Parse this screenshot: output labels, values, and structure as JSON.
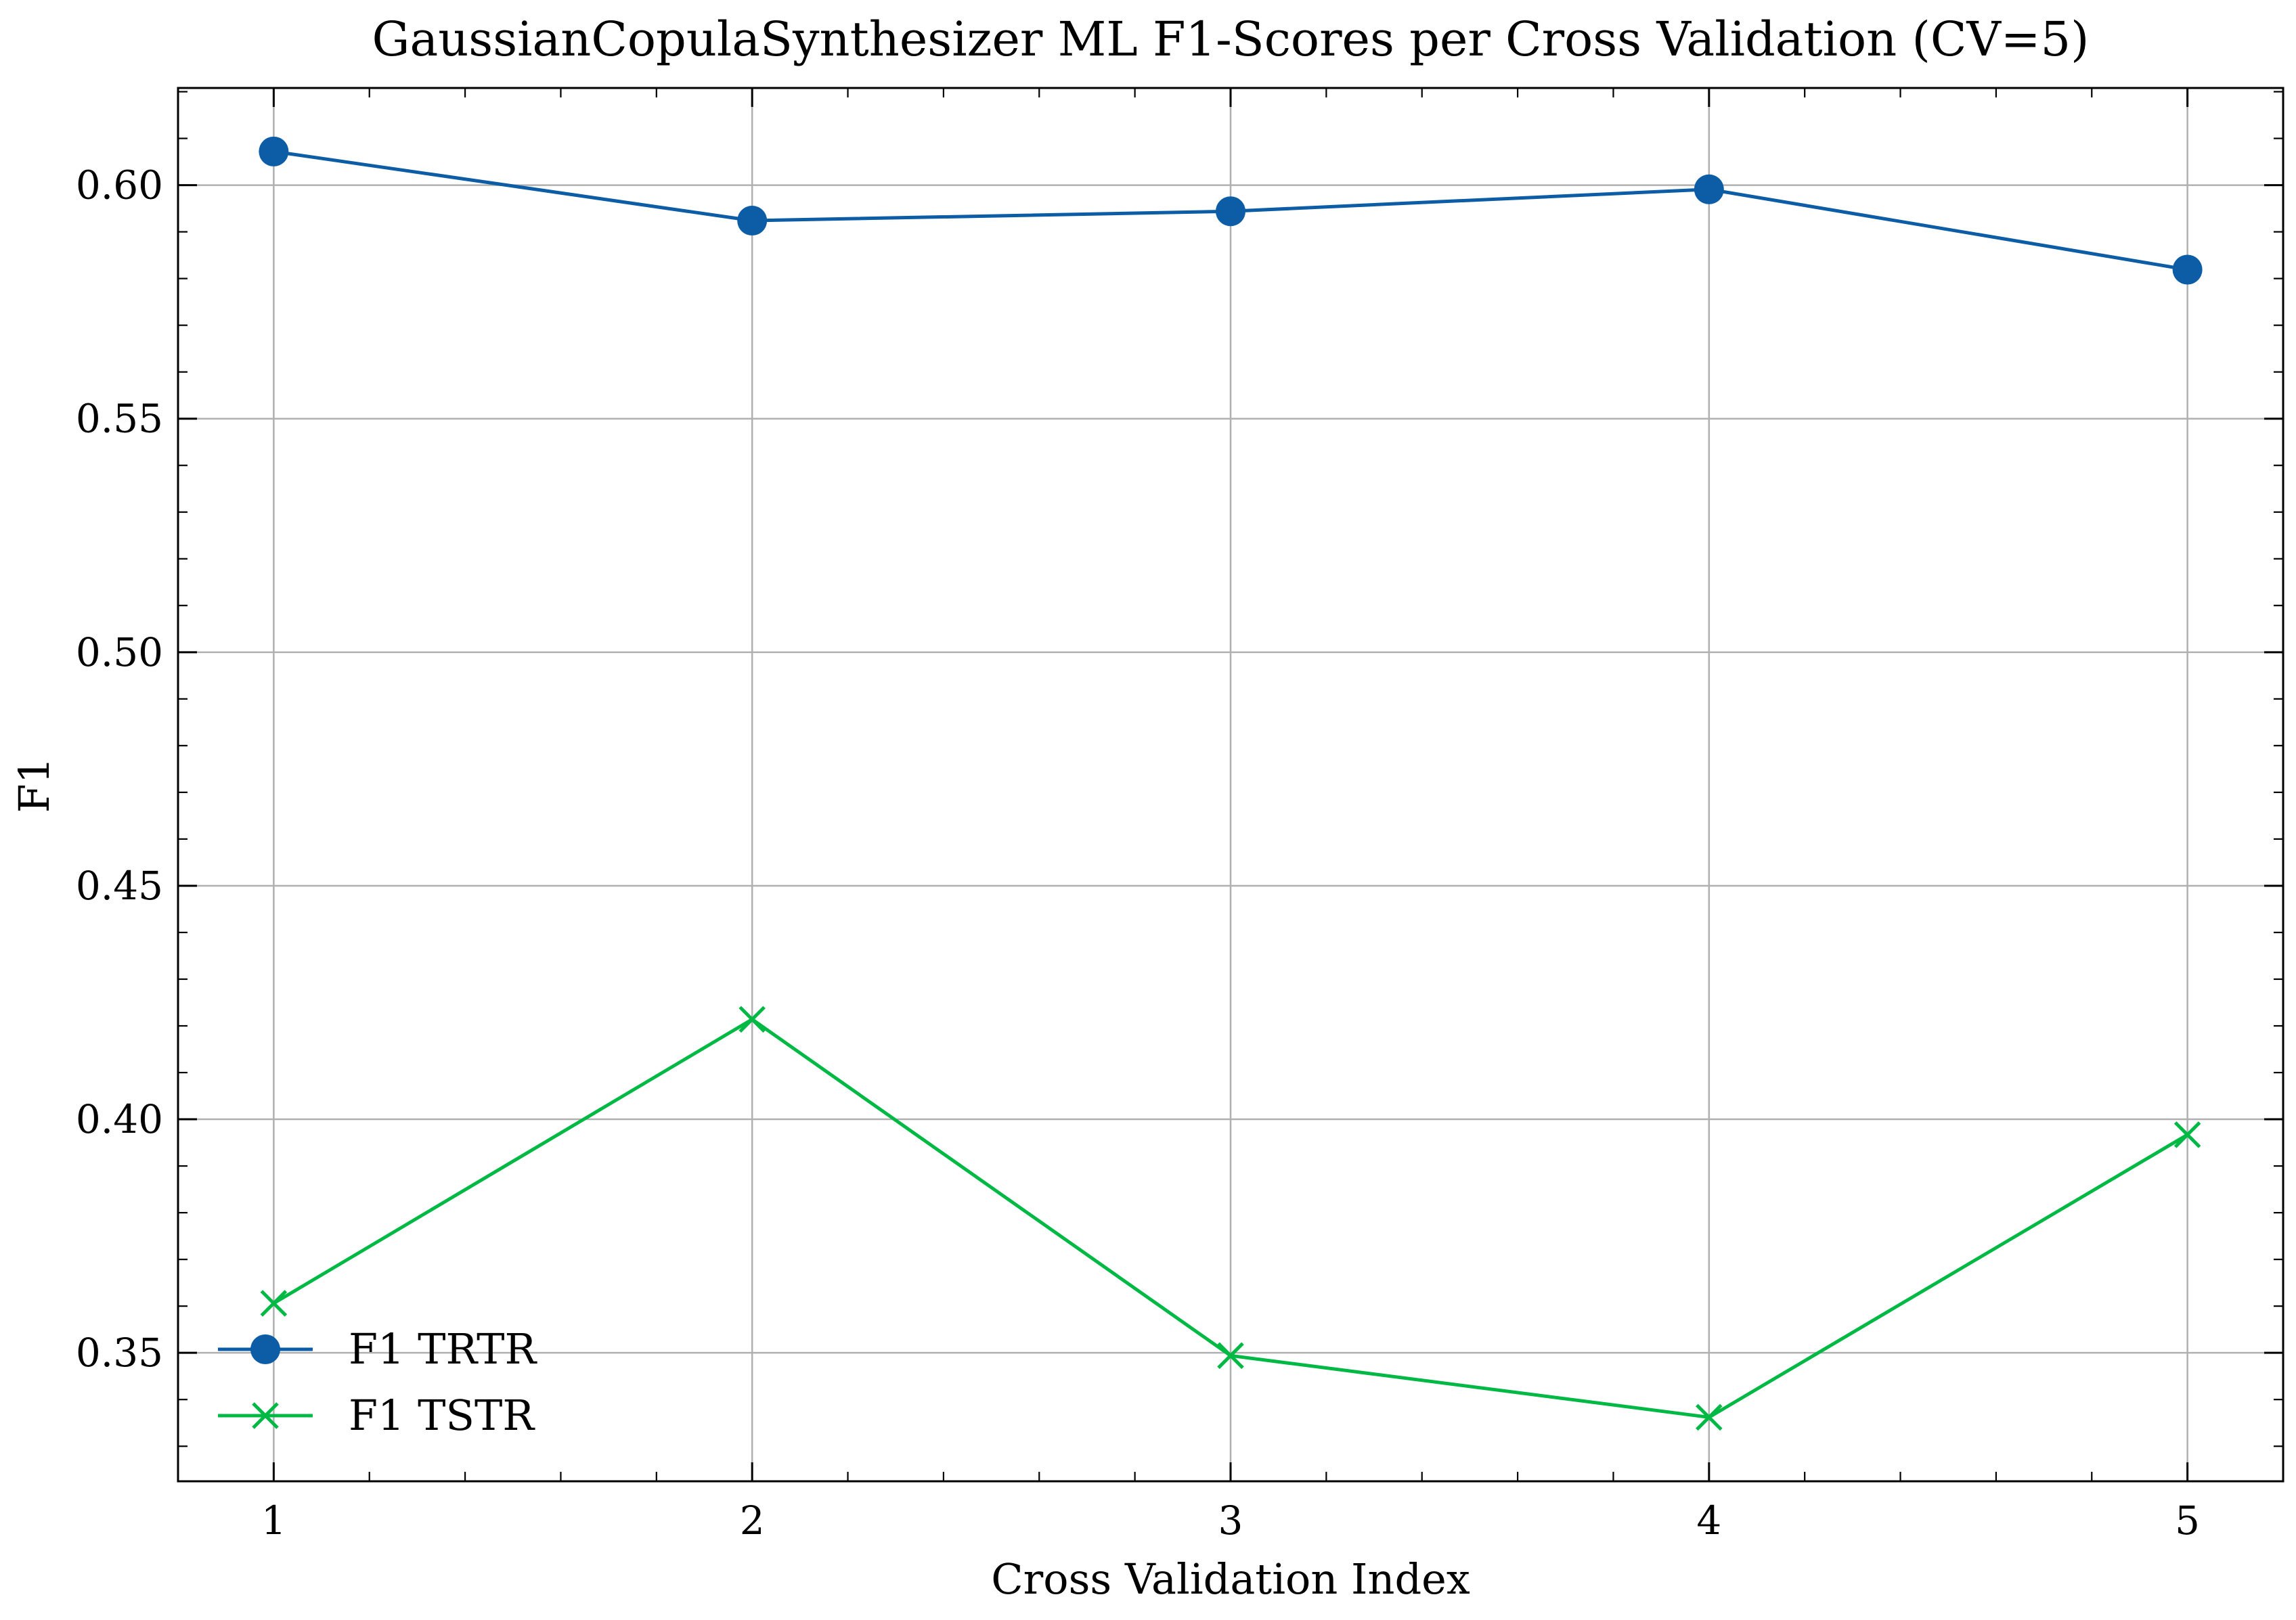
{
  "chart_data": {
    "type": "line",
    "title": "GaussianCopulaSynthesizer ML F1-Scores per Cross Validation (CV=5)",
    "xlabel": "Cross Validation Index",
    "ylabel": "F1",
    "x": [
      1,
      2,
      3,
      4,
      5
    ],
    "xlim": [
      0.8,
      5.2
    ],
    "ylim": [
      0.3225,
      0.6208
    ],
    "x_ticks": [
      "1",
      "2",
      "3",
      "4",
      "5"
    ],
    "y_ticks": [
      "0.35",
      "0.40",
      "0.45",
      "0.50",
      "0.55",
      "0.60"
    ],
    "grid": true,
    "legend_position": "lower-left",
    "series": [
      {
        "name": "F1 TRTR",
        "values": [
          0.6072,
          0.5924,
          0.5944,
          0.5991,
          0.5819
        ],
        "color": "#0C5DA5",
        "marker": "circle"
      },
      {
        "name": "F1 TSTR",
        "values": [
          0.3606,
          0.4214,
          0.3494,
          0.3362,
          0.3967
        ],
        "color": "#00B945",
        "marker": "x"
      }
    ]
  }
}
